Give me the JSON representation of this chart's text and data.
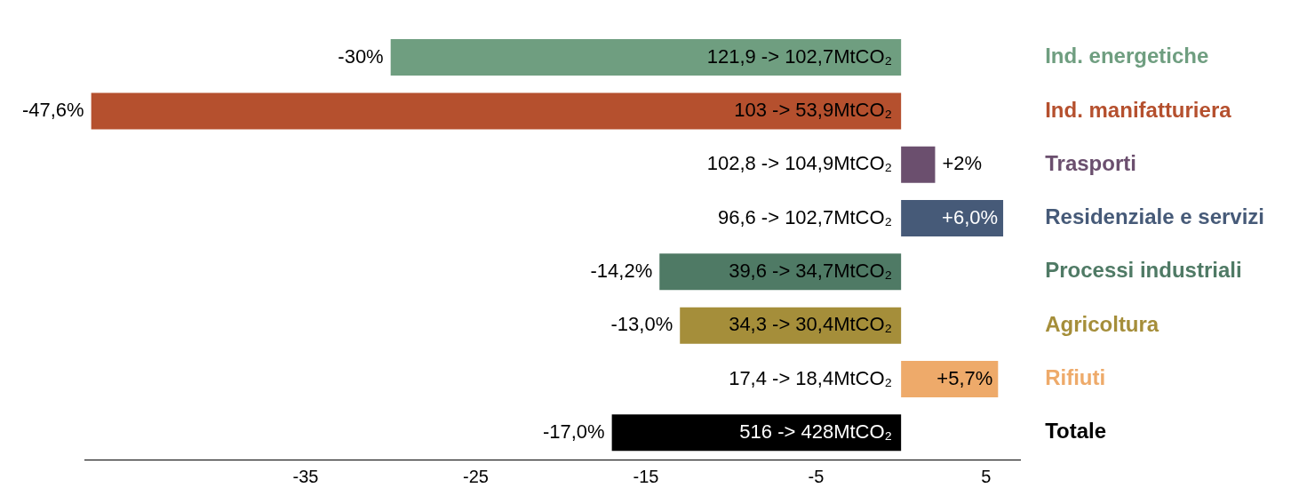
{
  "chart_data": {
    "type": "bar",
    "orientation": "horizontal",
    "categories": [
      "Ind. energetiche",
      "Ind. manifatturiera",
      "Trasporti",
      "Residenziale e servizi",
      "Processi industriali",
      "Agricoltura",
      "Rifiuti",
      "Totale"
    ],
    "values": [
      -30,
      -47.6,
      2,
      6.0,
      -14.2,
      -13.0,
      5.7,
      -17.0
    ],
    "colors": [
      "#6f9e80",
      "#b5502e",
      "#6b4f6e",
      "#465a78",
      "#4f7a65",
      "#a58e3a",
      "#eeaa6a",
      "#000000"
    ],
    "value_labels": [
      "-30%",
      "-47,6%",
      "+2%",
      "+6,0%",
      "-14,2%",
      "-13,0%",
      "+5,7%",
      "-17,0%"
    ],
    "annotations": [
      "121,9 -> 102,7MtCO₂",
      "103 -> 53,9MtCO₂",
      "102,8 -> 104,9MtCO₂",
      "96,6 -> 102,7MtCO₂",
      "39,6 -> 34,7MtCO₂",
      "34,3 -> 30,4MtCO₂",
      "17,4 -> 18,4MtCO₂",
      "516 -> 428MtCO₂"
    ],
    "xlim": [
      -48,
      7
    ],
    "xticks": [
      -35,
      -25,
      -15,
      -5,
      5
    ],
    "grid": false,
    "legend": false
  }
}
